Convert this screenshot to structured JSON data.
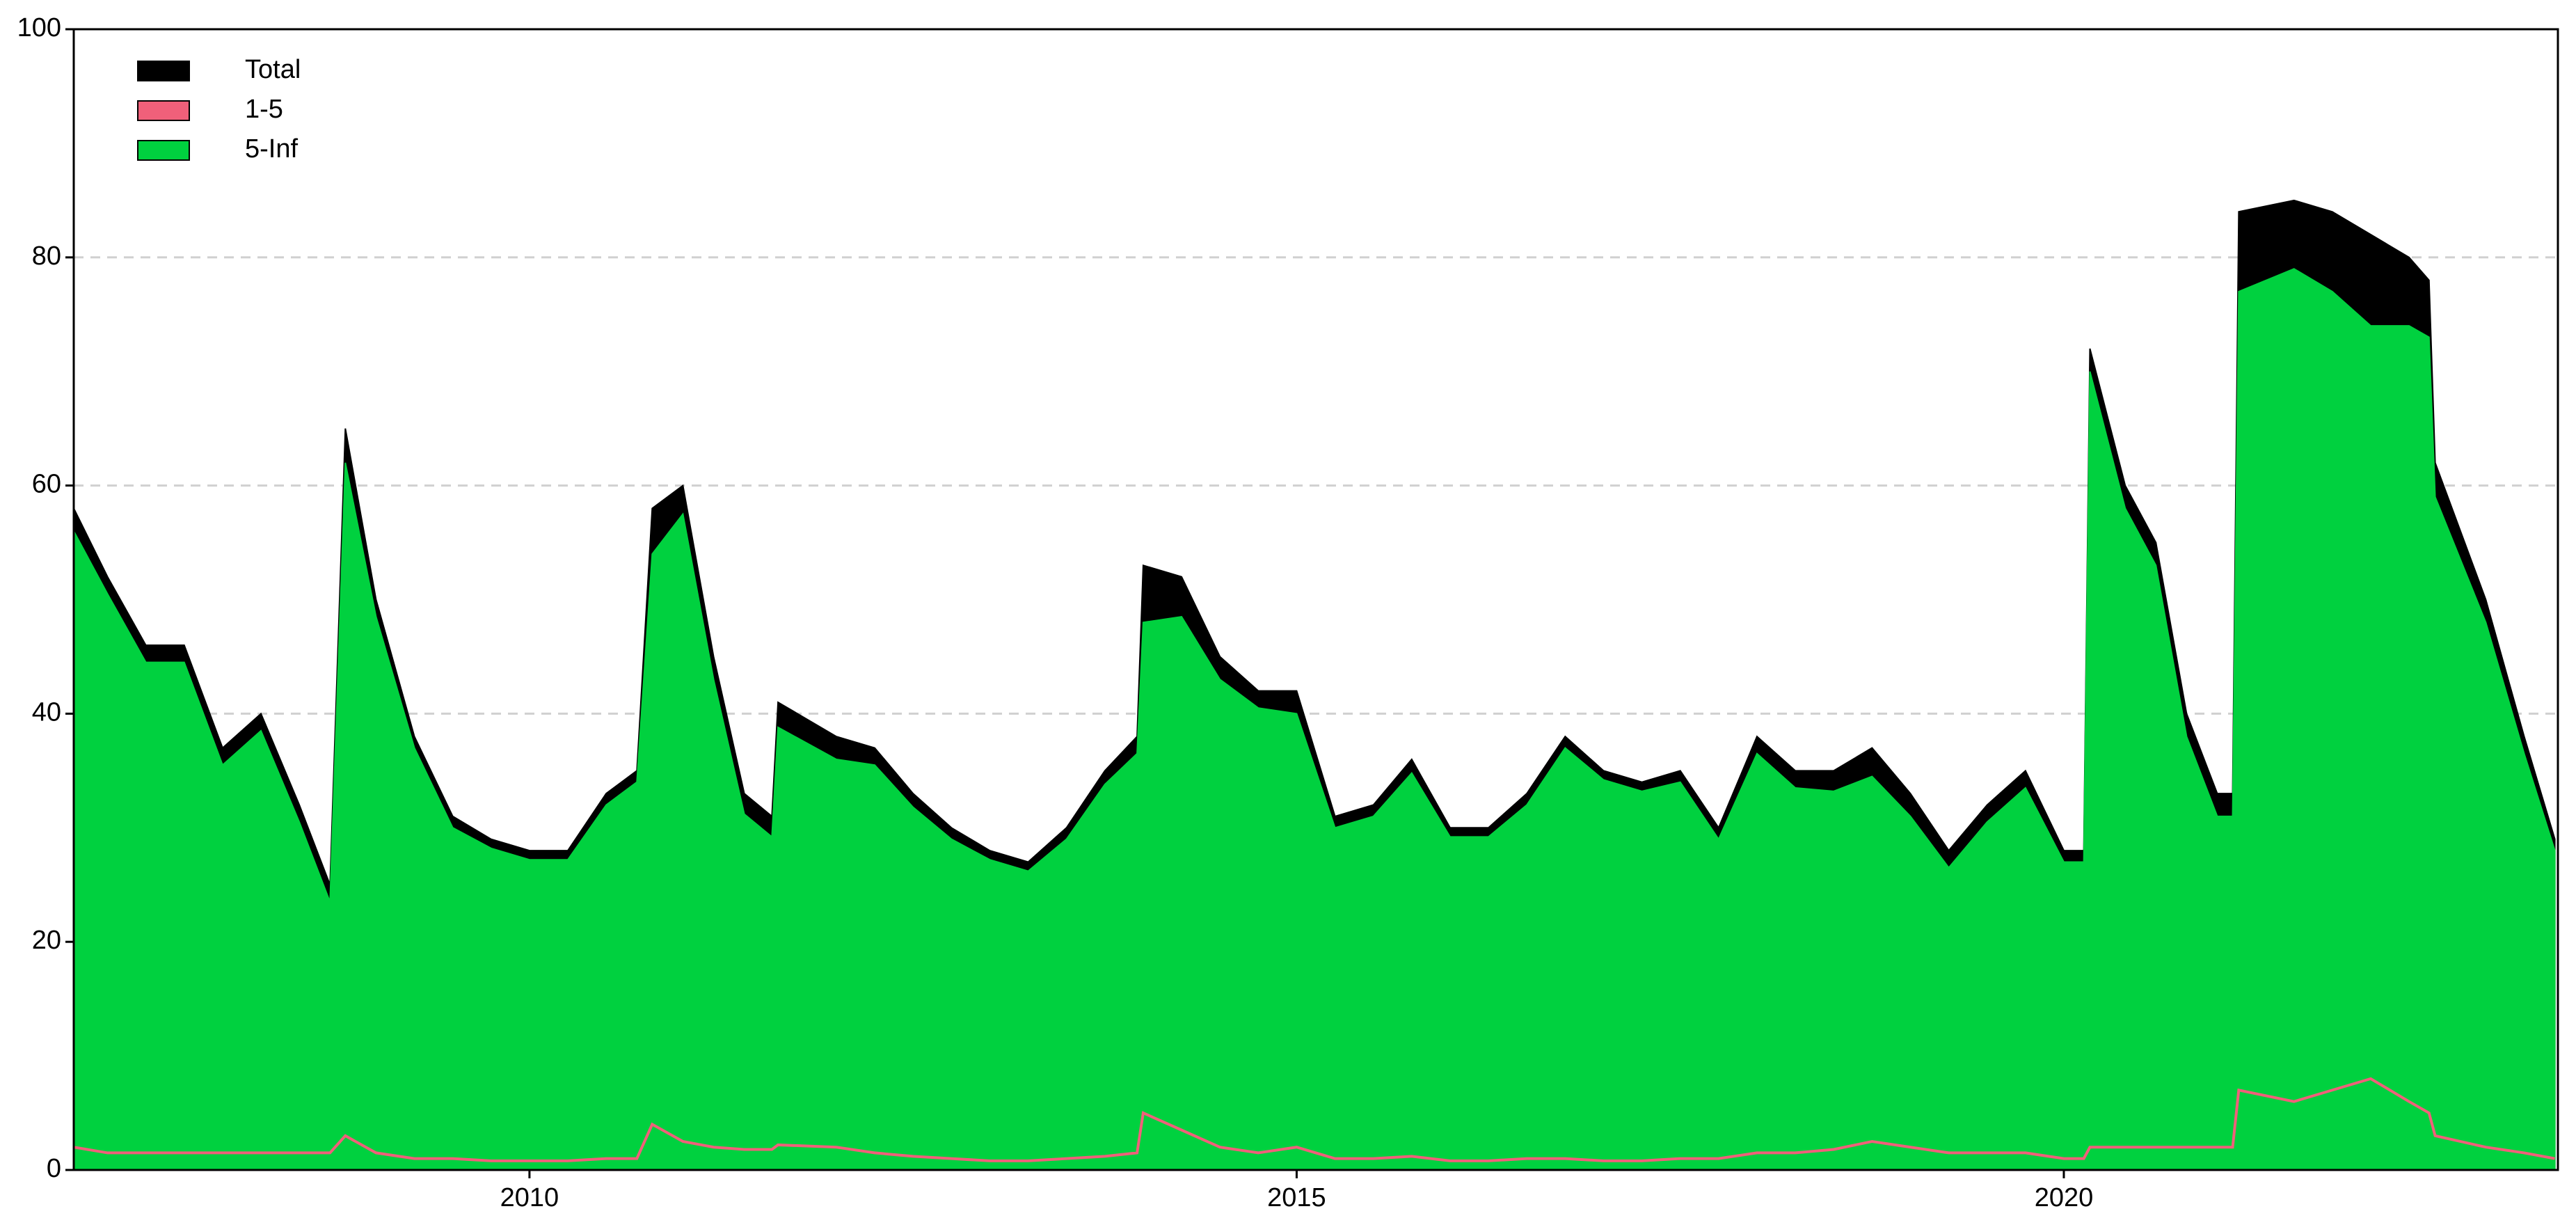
{
  "chart_data": {
    "type": "area",
    "x": [
      2007.03,
      2007.25,
      2007.5,
      2007.75,
      2008.0,
      2008.25,
      2008.5,
      2008.7,
      2008.8,
      2009.0,
      2009.25,
      2009.5,
      2009.75,
      2010.0,
      2010.25,
      2010.5,
      2010.7,
      2010.8,
      2011.0,
      2011.2,
      2011.4,
      2011.58,
      2011.62,
      2012.0,
      2012.25,
      2012.5,
      2012.75,
      2013.0,
      2013.25,
      2013.5,
      2013.75,
      2013.96,
      2014.0,
      2014.25,
      2014.5,
      2014.75,
      2015.0,
      2015.25,
      2015.5,
      2015.75,
      2016.0,
      2016.25,
      2016.5,
      2016.75,
      2017.0,
      2017.25,
      2017.5,
      2017.75,
      2018.0,
      2018.25,
      2018.5,
      2018.75,
      2019.0,
      2019.25,
      2019.5,
      2019.75,
      2020.0,
      2020.13,
      2020.17,
      2020.4,
      2020.6,
      2020.8,
      2021.0,
      2021.1,
      2021.14,
      2021.5,
      2021.75,
      2022.0,
      2022.25,
      2022.38,
      2022.42,
      2022.75,
      2023.0,
      2023.2
    ],
    "series": [
      {
        "name": "Total",
        "color": "#000000",
        "values": [
          58,
          52,
          46,
          46,
          37,
          40,
          32,
          25,
          65,
          50,
          38,
          31,
          29,
          28,
          28,
          33,
          35,
          58,
          60,
          45,
          33,
          31,
          41,
          38,
          37,
          33,
          30,
          28,
          27,
          30,
          35,
          38,
          53,
          52,
          45,
          42,
          42,
          31,
          32,
          36,
          30,
          30,
          33,
          38,
          35,
          34,
          35,
          30,
          38,
          35,
          35,
          37,
          33,
          28,
          32,
          35,
          28,
          28,
          72,
          60,
          55,
          40,
          33,
          33,
          84,
          85,
          84,
          82,
          80,
          78,
          62,
          50,
          38,
          29
        ]
      },
      {
        "name": "1-5",
        "color": "#f0607a",
        "values": [
          2,
          1.5,
          1.5,
          1.5,
          1.5,
          1.5,
          1.5,
          1.5,
          3,
          1.5,
          1,
          1,
          0.8,
          0.8,
          0.8,
          1,
          1,
          4,
          2.5,
          2,
          1.8,
          1.8,
          2.2,
          2,
          1.5,
          1.2,
          1,
          0.8,
          0.8,
          1,
          1.2,
          1.5,
          5,
          3.5,
          2,
          1.5,
          2,
          1,
          1,
          1.2,
          0.8,
          0.8,
          1,
          1,
          0.8,
          0.8,
          1,
          1,
          1.5,
          1.5,
          1.8,
          2.5,
          2,
          1.5,
          1.5,
          1.5,
          1,
          1,
          2,
          2,
          2,
          2,
          2,
          2,
          7,
          6,
          7,
          8,
          6,
          5,
          3,
          2,
          1.5,
          1
        ]
      },
      {
        "name": "5-Inf",
        "color": "#00d13f",
        "values": [
          56,
          50.5,
          44.5,
          44.5,
          35.5,
          38.5,
          30.5,
          23.5,
          62,
          48.5,
          37,
          30,
          28.2,
          27.2,
          27.2,
          32,
          34,
          54,
          57.5,
          43,
          31.2,
          29.2,
          38.8,
          36,
          35.5,
          31.8,
          29,
          27.2,
          26.2,
          29,
          33.8,
          36.5,
          48,
          48.5,
          43,
          40.5,
          40,
          30,
          31,
          34.8,
          29.2,
          29.2,
          32,
          37,
          34.2,
          33.2,
          34,
          29,
          36.5,
          33.5,
          33.2,
          34.5,
          31,
          26.5,
          30.5,
          33.5,
          27,
          27,
          70,
          58,
          53,
          38,
          31,
          31,
          77,
          79,
          77,
          74,
          74,
          73,
          59,
          48,
          36.5,
          28
        ]
      }
    ],
    "xlim": [
      2007.03,
      2023.22
    ],
    "xticks": [
      2010,
      2015,
      2020
    ],
    "ylim": [
      0,
      100
    ],
    "yticks": [
      0,
      20,
      40,
      60,
      80,
      100
    ],
    "grid": true,
    "legend": "upper left"
  }
}
